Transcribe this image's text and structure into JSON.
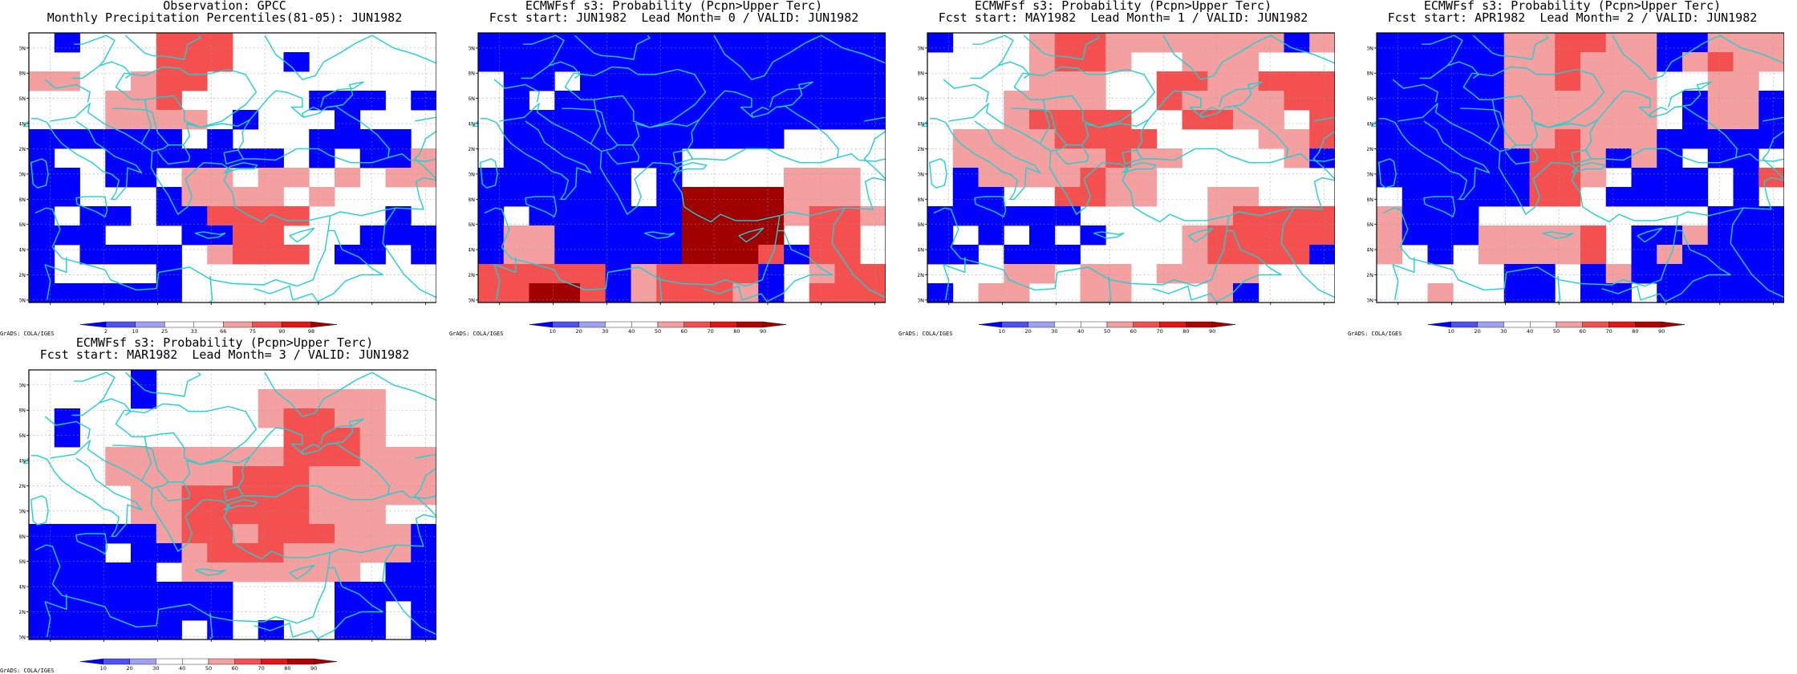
{
  "panels": [
    {
      "title1": "Observation: GPCC",
      "title2": "Monthly Precipitation Percentiles(81-05): JUN1982",
      "colorbar": {
        "colors": [
          "#0000ff",
          "#5050f5",
          "#a0a0f5",
          "#ffffff",
          "#ffffff",
          "#f5a0a0",
          "#f55050",
          "#e61414",
          "#a00000"
        ],
        "labels": [
          "2",
          "10",
          "25",
          "33",
          "66",
          "75",
          "90",
          "98"
        ]
      },
      "grid": [
        "0B000RRR00000000",
        "00000RRR00B00000",
        "MM00MRR000000000",
        "000MMR00000BBB0B",
        "000MMMM0B000B000",
        "BBBBBB0B000BBBB0",
        "B00BBBBBBB0B0BBM",
        "BB0BB0MM0MM0M0MM",
        "BB000BMMMM0M0000",
        "B0BB0BBRRRR000B0",
        "BBB000BBRR000BBB",
        "B0BBBB0MRRR0BB0B",
        "B0000B0000000000",
        "BBBBBB0000000000"
      ]
    },
    {
      "title1": "ECMWFsf s3: Probability (Pcpn>Upper Terc)",
      "title2": "Fcst start: JUN1982  Lead Month= 0 / VALID: JUN1982",
      "colorbar": {
        "colors": [
          "#0000ff",
          "#5050f5",
          "#a0a0f5",
          "#ffffff",
          "#ffffff",
          "#f5a0a0",
          "#f55050",
          "#e61414",
          "#b40000",
          "#a00000"
        ],
        "labels": [
          "10",
          "20",
          "30",
          "40",
          "50",
          "60",
          "70",
          "80",
          "90"
        ]
      },
      "grid": [
        "BBBBBBBBBBBBBBBB",
        "BBBBBBBBBBBBBBBB",
        "0BB0BBBBBBBBBBBB",
        "0B0BBBBBBBBBBBBB",
        "0BBBBBBBBBBBBBBB",
        "0BBBBBBBBBBB0000",
        "0BBBBBBB00000000",
        "BBBBBB0B0000MMM0",
        "BBBBBB0BDDDDMMM0",
        "B0BBBBBBDDDDMRRM",
        "BMMBBBBBDDDD0RR0",
        "BMMBBBBBDDDRBRR0",
        "RRRRRBMRRRRB0MRR",
        "RRDDRBMRRRMB0RRR"
      ]
    },
    {
      "title1": "ECMWFsf s3: Probability (Pcpn>Upper Terc)",
      "title2": "Fcst start: MAY1982  Lead Month= 1 / VALID: JUN1982",
      "colorbar": {
        "colors": [
          "#0000ff",
          "#5050f5",
          "#a0a0f5",
          "#ffffff",
          "#ffffff",
          "#f5a0a0",
          "#f55050",
          "#e61414",
          "#b40000",
          "#a00000"
        ],
        "labels": [
          "10",
          "20",
          "30",
          "40",
          "50",
          "60",
          "70",
          "80",
          "90"
        ]
      },
      "grid": [
        "B000MRRMMMMMMMBM",
        "0000MRRM00MMM000",
        "0000MMM00RRMMRRR",
        "000MMMM00RMMMMRR",
        "000MRRRR00RRMM0R",
        "0MMMMRRRR0000MMR",
        "0MMMMMMRMM0000MB",
        "0BMMMMRMM0000000",
        "0BB00RRMM00MM000",
        "BBBBBB00000MRRRR",
        "B0B0B0B000MRRRRR",
        "BB0BBB0000MRRRRB",
        "000MM0MM0MMMM000",
        "B0MM00MM000MB000"
      ]
    },
    {
      "title1": "ECMWFsf s3: Probability (Pcpn>Upper Terc)",
      "title2": "Fcst start: APR1982  Lead Month= 2 / VALID: JUN1982",
      "colorbar": {
        "colors": [
          "#0000ff",
          "#5050f5",
          "#a0a0f5",
          "#ffffff",
          "#ffffff",
          "#f5a0a0",
          "#f55050",
          "#e61414",
          "#b40000",
          "#a00000"
        ],
        "labels": [
          "10",
          "20",
          "30",
          "40",
          "50",
          "60",
          "70",
          "80",
          "90"
        ]
      },
      "grid": [
        "BBBBBMMRRMMBBMMM",
        "BBBBBMMRMMMBMRMM",
        "BBBBBMMRMMM00MM0",
        "BBBBBMMMMMM0BMMB",
        "BBBBBMMMMMM0BMMB",
        "BBBBBMMRMMMBBBBB",
        "BBBBBBRRMBMB0BB0",
        "BBBBBBRRM0BBB0BR",
        "0BBBBBRR0BBBB0B0",
        "MBBB000000000BBB",
        "MBBBMMMMR0BBMBBB",
        "M0B0MMMMR0BMBBBB",
        "00000BB0BMBBBBBB",
        "00M00BB0BB0BBBBB"
      ]
    },
    {
      "title1": "ECMWFsf s3: Probability (Pcpn>Upper Terc)",
      "title2": "Fcst start: MAR1982  Lead Month= 3 / VALID: JUN1982",
      "colorbar": {
        "colors": [
          "#0000ff",
          "#5050f5",
          "#a0a0f5",
          "#ffffff",
          "#ffffff",
          "#f5a0a0",
          "#f55050",
          "#e61414",
          "#b40000",
          "#a00000"
        ],
        "labels": [
          "10",
          "20",
          "30",
          "40",
          "50",
          "60",
          "70",
          "80",
          "90"
        ]
      },
      "grid": [
        "0000B00000000000",
        "0000B0000MMMMM00",
        "0B0000000MRRMM00",
        "0B00000000RRRM00",
        "000MMMMMMMRRRMMM",
        "000MMMMMRRRMMMMM",
        "0000MMRRRRRMMMMM",
        "0000MMRRRRRMMM00",
        "BBBBBMRRMRRRMMMB",
        "BBB0BBMRRRMMMMMB",
        "BBBBB0MMMMMMM0BB",
        "BBBBBBBB0000BBBB",
        "BBBBBBBB0000BB0B",
        "BBBBBB0B0B00BB0B"
      ]
    }
  ],
  "legend": {
    "B": "#0000ff",
    "M": "#f5a0a0",
    "R": "#f55050",
    "D": "#a00000"
  },
  "lat_labels": [
    "50N",
    "48N",
    "46N",
    "44N",
    "42N",
    "40N",
    "38N",
    "36N",
    "34N",
    "32N",
    "30N"
  ],
  "lon_labels": [
    "10E",
    "15E",
    "20E",
    "25E",
    "30E",
    "35E",
    "40E",
    "45E"
  ],
  "credit": "GrADS: COLA/IGES"
}
